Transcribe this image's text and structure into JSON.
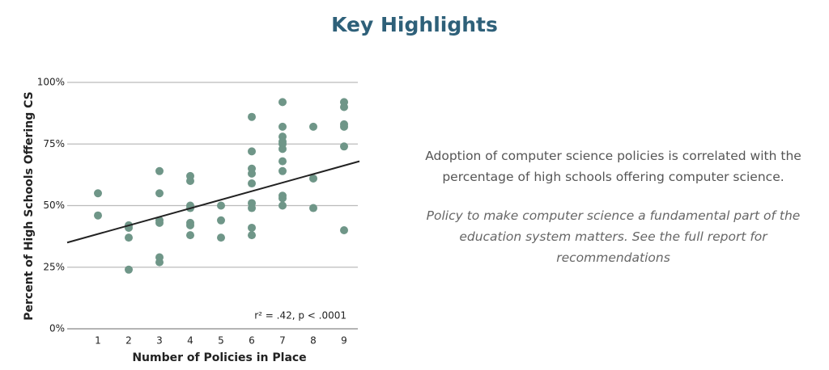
{
  "chart_data": {
    "type": "scatter",
    "title": "Key Highlights",
    "x_label": "Number of Policies in Place",
    "y_label": "Percent of High Schools Offering CS",
    "annotation": "r² = .42,  p < .0001",
    "xlim": [
      0,
      9.5
    ],
    "xticks": [
      1,
      2,
      3,
      4,
      5,
      6,
      7,
      8,
      9
    ],
    "ylim": [
      0,
      100
    ],
    "yticks": [
      {
        "value": 0,
        "label": "0%"
      },
      {
        "value": 25,
        "label": "25%"
      },
      {
        "value": 50,
        "label": "50%"
      },
      {
        "value": 75,
        "label": "75%"
      },
      {
        "value": 100,
        "label": "100%"
      }
    ],
    "grid": true,
    "points": {
      "color": "#6f9688",
      "x": [
        1,
        1,
        2,
        2,
        2,
        2,
        3,
        3,
        3,
        3,
        3,
        3,
        4,
        4,
        4,
        4,
        4,
        4,
        4,
        5,
        5,
        5,
        6,
        6,
        6,
        6,
        6,
        6,
        6,
        6,
        6,
        7,
        7,
        7,
        7,
        7,
        7,
        7,
        7,
        7,
        7,
        7,
        8,
        8,
        8,
        9,
        9,
        9,
        9,
        9,
        9
      ],
      "y": [
        55,
        46,
        42,
        41,
        37,
        24,
        64,
        55,
        44,
        43,
        29,
        27,
        62,
        60,
        50,
        49,
        43,
        42,
        38,
        50,
        44,
        37,
        86,
        72,
        65,
        63,
        59,
        51,
        49,
        41,
        38,
        92,
        82,
        78,
        76,
        75,
        73,
        68,
        64,
        54,
        53,
        50,
        82,
        61,
        49,
        92,
        90,
        83,
        82,
        74,
        40
      ]
    },
    "trend_line": {
      "color": "#222222",
      "x": [
        0,
        9.5
      ],
      "y": [
        35,
        68
      ]
    }
  },
  "text": {
    "paragraph": "Adoption of computer science policies is correlated with the percentage of high schools offering computer science.",
    "note": "Policy to make computer science a fundamental part of the education system matters. See the full report for recommendations"
  }
}
